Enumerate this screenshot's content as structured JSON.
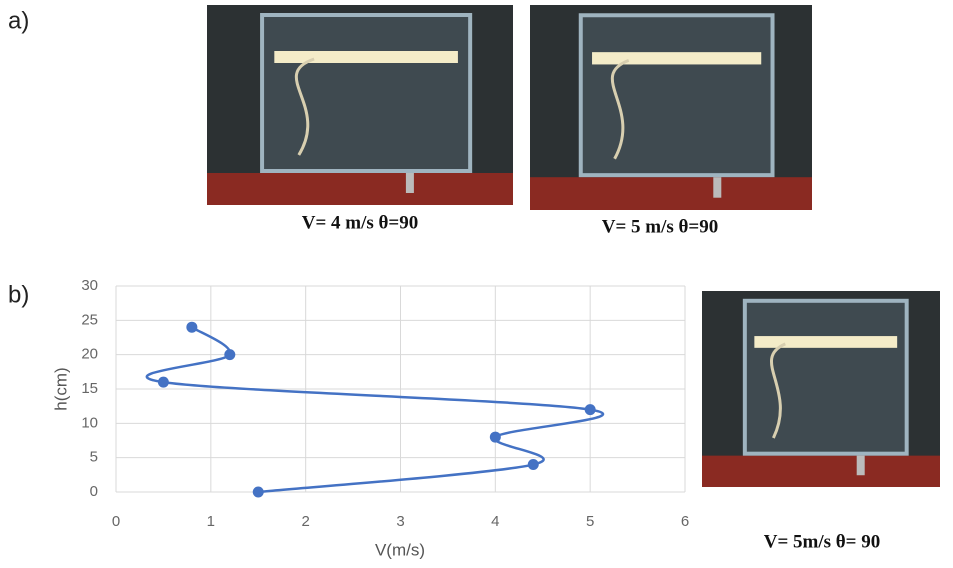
{
  "panels": {
    "a": {
      "label": "a)",
      "captions": [
        "V= 4 m/s    θ=90",
        "V= 5 m/s    θ=90"
      ]
    },
    "b": {
      "label": "b)",
      "caption": "V= 5m/s    θ= 90"
    }
  },
  "chart_data": {
    "type": "line",
    "x_label": "V(m/s)",
    "y_label": "h(cm)",
    "x": [
      1.5,
      4.4,
      4,
      5,
      0.5,
      1.2,
      0.8
    ],
    "values": [
      0,
      4,
      8,
      12,
      16,
      20,
      24
    ],
    "color": "#4472c4",
    "smooth": true,
    "grid": true,
    "xlim": [
      0,
      6
    ],
    "xticks": [
      0,
      1,
      2,
      3,
      4,
      5,
      6
    ],
    "ylim": [
      0,
      30
    ],
    "yticks": [
      0,
      5,
      10,
      15,
      20,
      25,
      30
    ]
  }
}
